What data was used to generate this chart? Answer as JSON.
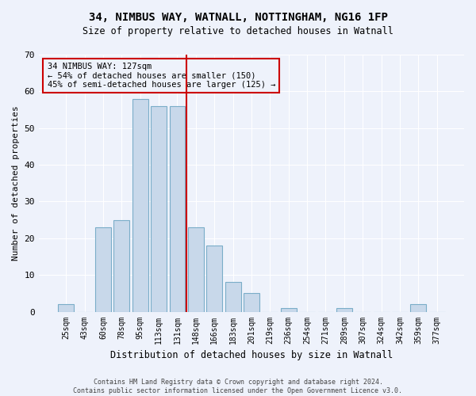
{
  "title1": "34, NIMBUS WAY, WATNALL, NOTTINGHAM, NG16 1FP",
  "title2": "Size of property relative to detached houses in Watnall",
  "xlabel": "Distribution of detached houses by size in Watnall",
  "ylabel": "Number of detached properties",
  "categories": [
    "25sqm",
    "43sqm",
    "60sqm",
    "78sqm",
    "95sqm",
    "113sqm",
    "131sqm",
    "148sqm",
    "166sqm",
    "183sqm",
    "201sqm",
    "219sqm",
    "236sqm",
    "254sqm",
    "271sqm",
    "289sqm",
    "307sqm",
    "324sqm",
    "342sqm",
    "359sqm",
    "377sqm"
  ],
  "values": [
    2,
    0,
    23,
    25,
    58,
    56,
    56,
    23,
    18,
    8,
    5,
    0,
    1,
    0,
    0,
    1,
    0,
    0,
    0,
    2,
    0
  ],
  "bar_color": "#c8d8ea",
  "bar_edge_color": "#7aadc8",
  "vline_x_index": 6.5,
  "annotation_line1": "34 NIMBUS WAY: 127sqm",
  "annotation_line2": "← 54% of detached houses are smaller (150)",
  "annotation_line3": "45% of semi-detached houses are larger (125) →",
  "box_color": "#cc0000",
  "bg_color": "#eef2fb",
  "footer1": "Contains HM Land Registry data © Crown copyright and database right 2024.",
  "footer2": "Contains public sector information licensed under the Open Government Licence v3.0.",
  "ylim": [
    0,
    70
  ],
  "yticks": [
    0,
    10,
    20,
    30,
    40,
    50,
    60,
    70
  ]
}
